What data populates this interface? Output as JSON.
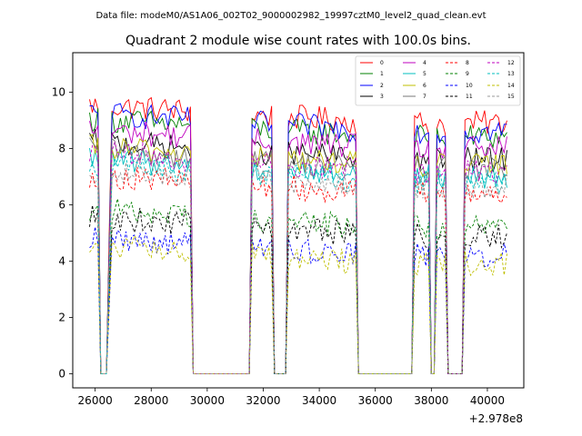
{
  "chart_data": {
    "type": "line",
    "suptitle": "Data file: modeM0/AS1A06_002T02_9000002982_19997cztM0_level2_quad_clean.evt",
    "title": "Quadrant 2 module wise count rates with 100.0s bins.",
    "xlabel": "",
    "ylabel": "",
    "x_offset_label": "+2.978e8",
    "xlim": [
      25200,
      41300
    ],
    "ylim": [
      -0.5,
      11.4
    ],
    "xticks": [
      26000,
      28000,
      30000,
      32000,
      34000,
      36000,
      38000,
      40000
    ],
    "xtick_labels": [
      "26000",
      "28000",
      "30000",
      "32000",
      "34000",
      "36000",
      "38000",
      "40000"
    ],
    "yticks": [
      0,
      2,
      4,
      6,
      8,
      10
    ],
    "ytick_labels": [
      "0",
      "2",
      "4",
      "6",
      "8",
      "10"
    ],
    "legend_position": "top-right",
    "time_profile": [
      [
        25800,
        1.0
      ],
      [
        26100,
        1.0
      ],
      [
        26200,
        0.0
      ],
      [
        26400,
        0.0
      ],
      [
        26600,
        1.0
      ],
      [
        29400,
        1.0
      ],
      [
        29500,
        0.0
      ],
      [
        31500,
        0.0
      ],
      [
        31600,
        1.0
      ],
      [
        32300,
        1.0
      ],
      [
        32400,
        0.0
      ],
      [
        32800,
        0.0
      ],
      [
        32900,
        1.0
      ],
      [
        35300,
        1.0
      ],
      [
        35400,
        0.0
      ],
      [
        37300,
        0.0
      ],
      [
        37400,
        1.0
      ],
      [
        37900,
        1.0
      ],
      [
        38000,
        0.0
      ],
      [
        38100,
        0.0
      ],
      [
        38200,
        1.0
      ],
      [
        38500,
        1.0
      ],
      [
        38600,
        0.0
      ],
      [
        39100,
        0.0
      ],
      [
        39200,
        1.0
      ],
      [
        40700,
        1.0
      ]
    ],
    "series": [
      {
        "name": "0",
        "color": "#ff0000",
        "style": "solid",
        "level": 9.5
      },
      {
        "name": "1",
        "color": "#008000",
        "style": "solid",
        "level": 9.0
      },
      {
        "name": "2",
        "color": "#0000ff",
        "style": "solid",
        "level": 9.2
      },
      {
        "name": "3",
        "color": "#000000",
        "style": "solid",
        "level": 8.2
      },
      {
        "name": "4",
        "color": "#bf00bf",
        "style": "solid",
        "level": 8.6
      },
      {
        "name": "5",
        "color": "#00bfbf",
        "style": "solid",
        "level": 7.6
      },
      {
        "name": "6",
        "color": "#bfbf00",
        "style": "solid",
        "level": 8.0
      },
      {
        "name": "7",
        "color": "#777777",
        "style": "solid",
        "level": 7.9
      },
      {
        "name": "8",
        "color": "#ff0000",
        "style": "dashed",
        "level": 7.0
      },
      {
        "name": "9",
        "color": "#008000",
        "style": "dashed",
        "level": 5.8
      },
      {
        "name": "10",
        "color": "#0000ff",
        "style": "dashed",
        "level": 4.8
      },
      {
        "name": "11",
        "color": "#000000",
        "style": "dashed",
        "level": 5.5
      },
      {
        "name": "12",
        "color": "#bf00bf",
        "style": "dashed",
        "level": 7.8
      },
      {
        "name": "13",
        "color": "#00bfbf",
        "style": "dashed",
        "level": 7.4
      },
      {
        "name": "14",
        "color": "#bfbf00",
        "style": "dashed",
        "level": 4.5
      },
      {
        "name": "15",
        "color": "#999999",
        "style": "dashed",
        "level": 7.2
      }
    ]
  }
}
